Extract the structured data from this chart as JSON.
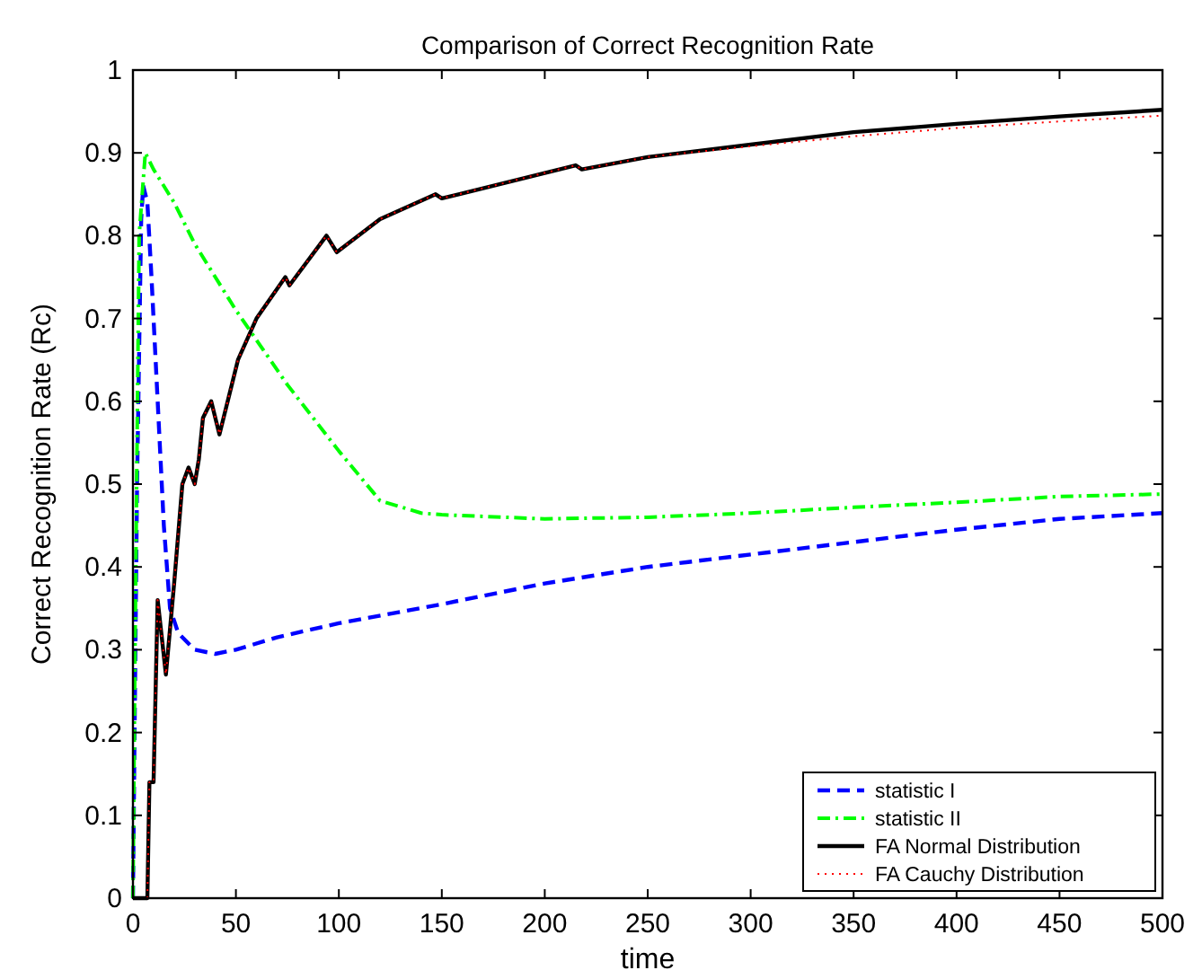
{
  "chart_data": {
    "type": "line",
    "title": "Comparison of Correct Recognition Rate",
    "xlabel": "time",
    "ylabel": "Correct Recognition Rate (Rc)",
    "xlim": [
      0,
      500
    ],
    "ylim": [
      0,
      1
    ],
    "xticks": [
      0,
      50,
      100,
      150,
      200,
      250,
      300,
      350,
      400,
      450,
      500
    ],
    "yticks": [
      0,
      0.1,
      0.2,
      0.3,
      0.4,
      0.5,
      0.6,
      0.7,
      0.8,
      0.9,
      1
    ],
    "grid": false,
    "legend": "bottom right",
    "marker": "none",
    "series": [
      {
        "name": "statistic I",
        "color": "#0000ff",
        "line_style": "dashed",
        "x": [
          0,
          2,
          4,
          5,
          7,
          9,
          12,
          15,
          18,
          22,
          30,
          40,
          50,
          70,
          100,
          150,
          200,
          250,
          300,
          350,
          400,
          450,
          500
        ],
        "values": [
          0,
          0.5,
          0.82,
          0.86,
          0.84,
          0.75,
          0.6,
          0.45,
          0.35,
          0.32,
          0.3,
          0.295,
          0.3,
          0.315,
          0.332,
          0.355,
          0.38,
          0.4,
          0.415,
          0.43,
          0.445,
          0.458,
          0.465
        ]
      },
      {
        "name": "statistic II",
        "color": "#00ff00",
        "line_style": "dashdot",
        "x": [
          0,
          1,
          3,
          6,
          10,
          20,
          30,
          50,
          75,
          100,
          120,
          140,
          150,
          200,
          250,
          300,
          350,
          400,
          450,
          500
        ],
        "values": [
          0,
          0.3,
          0.8,
          0.9,
          0.88,
          0.84,
          0.79,
          0.71,
          0.62,
          0.54,
          0.48,
          0.465,
          0.463,
          0.458,
          0.46,
          0.465,
          0.472,
          0.478,
          0.485,
          0.488
        ]
      },
      {
        "name": "FA Normal Distribution",
        "color": "#000000",
        "line_style": "solid",
        "x": [
          0,
          7,
          8,
          10,
          12,
          16,
          20,
          24,
          27,
          30,
          32,
          34,
          38,
          42,
          51,
          60,
          74,
          76,
          94,
          99,
          120,
          147,
          150,
          215,
          218,
          250,
          300,
          350,
          400,
          450,
          500
        ],
        "values": [
          0,
          0,
          0.14,
          0.14,
          0.36,
          0.27,
          0.38,
          0.5,
          0.52,
          0.5,
          0.53,
          0.58,
          0.6,
          0.56,
          0.65,
          0.7,
          0.75,
          0.74,
          0.8,
          0.78,
          0.82,
          0.85,
          0.845,
          0.885,
          0.88,
          0.895,
          0.91,
          0.925,
          0.935,
          0.944,
          0.952
        ]
      },
      {
        "name": "FA Cauchy Distribution",
        "color": "#ff0000",
        "line_style": "dotted",
        "x": [
          0,
          7,
          8,
          10,
          12,
          16,
          20,
          24,
          27,
          30,
          32,
          34,
          38,
          42,
          51,
          60,
          74,
          76,
          94,
          99,
          120,
          147,
          150,
          215,
          218,
          250,
          300,
          350,
          400,
          450,
          500
        ],
        "values": [
          0,
          0,
          0.14,
          0.14,
          0.36,
          0.27,
          0.38,
          0.5,
          0.52,
          0.5,
          0.53,
          0.58,
          0.6,
          0.56,
          0.65,
          0.7,
          0.75,
          0.74,
          0.8,
          0.78,
          0.82,
          0.85,
          0.845,
          0.885,
          0.88,
          0.895,
          0.908,
          0.92,
          0.93,
          0.938,
          0.945
        ]
      }
    ]
  }
}
